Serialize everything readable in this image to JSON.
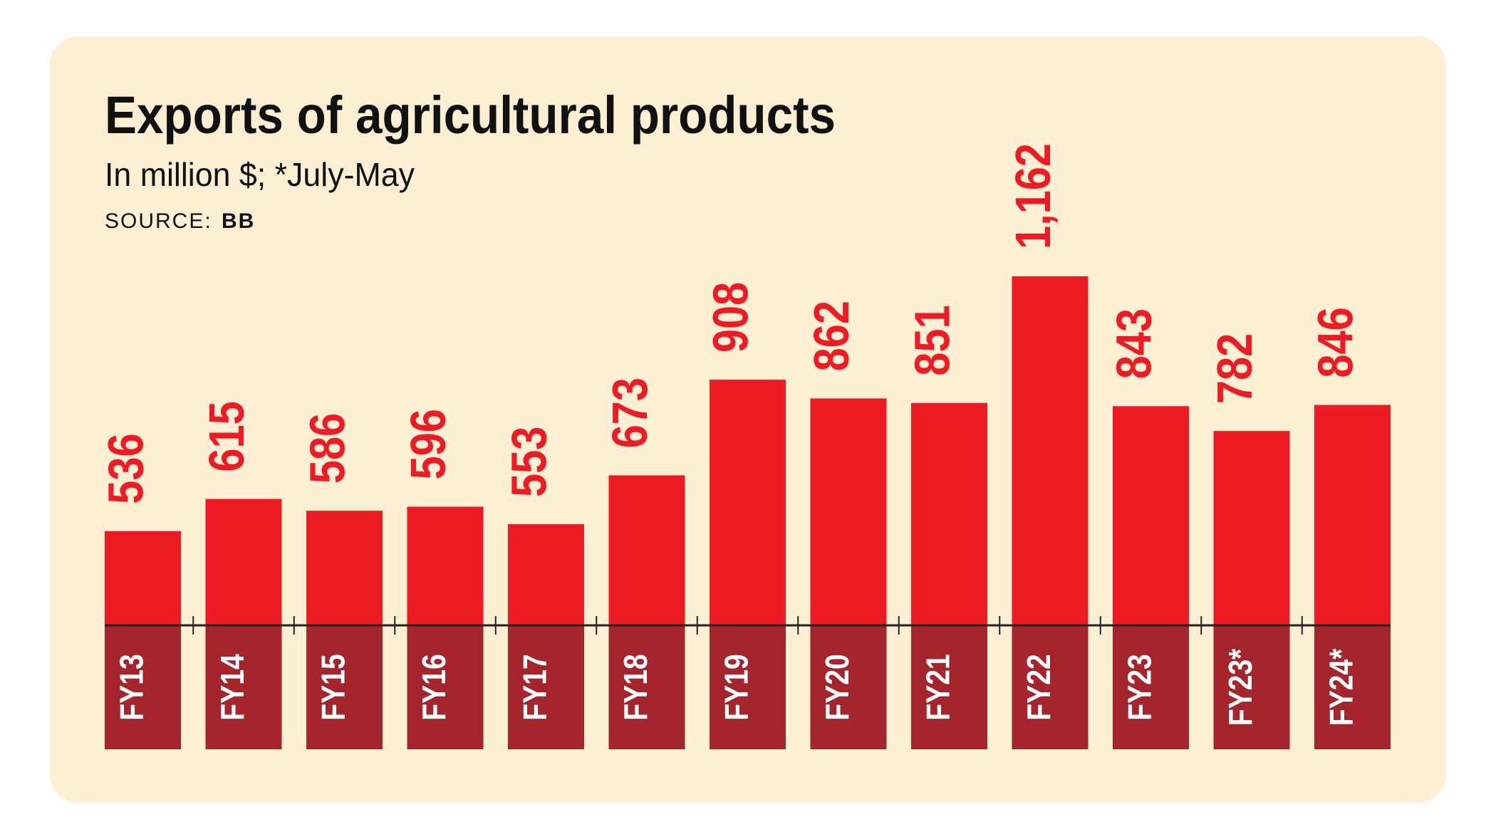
{
  "chart_data": {
    "type": "bar",
    "title": "Exports of agricultural products",
    "subtitle": "In million $; *July-May",
    "source_label": "SOURCE:",
    "source": "BB",
    "categories": [
      "FY13",
      "FY14",
      "FY15",
      "FY16",
      "FY17",
      "FY18",
      "FY19",
      "FY20",
      "FY21",
      "FY22",
      "FY23",
      "FY23*",
      "FY24*"
    ],
    "values": [
      536,
      615,
      586,
      596,
      553,
      673,
      908,
      862,
      851,
      1162,
      843,
      782,
      846
    ],
    "value_labels": [
      "536",
      "615",
      "586",
      "596",
      "553",
      "673",
      "908",
      "862",
      "851",
      "1,162",
      "843",
      "782",
      "846"
    ],
    "color": "#ed1c24"
  }
}
